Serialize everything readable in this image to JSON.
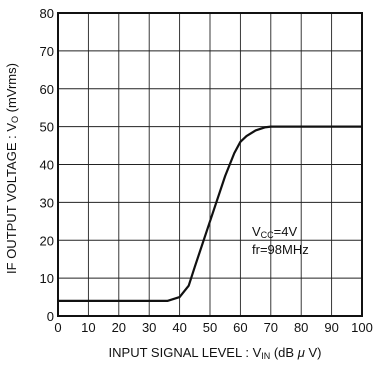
{
  "chart_data": {
    "type": "line",
    "title": "",
    "xlabel": {
      "main": "INPUT SIGNAL LEVEL : V",
      "sub": "IN",
      "unit_pre": " (dB ",
      "mu": "μ",
      "unit_post": " V)"
    },
    "ylabel": {
      "main": "IF OUTPUT VOLTAGE : V",
      "sub": "O",
      "unit": " (mVrms)"
    },
    "xlim": [
      0,
      100
    ],
    "ylim": [
      0,
      80
    ],
    "xticks": [
      "0",
      "10",
      "20",
      "30",
      "40",
      "50",
      "60",
      "70",
      "80",
      "90",
      "100"
    ],
    "yticks": [
      "0",
      "10",
      "20",
      "30",
      "40",
      "50",
      "60",
      "70",
      "80"
    ],
    "grid": true,
    "series": [
      {
        "x": [
          0,
          36,
          40,
          43,
          45,
          50,
          55,
          58,
          60,
          62,
          65,
          68,
          70,
          73,
          100
        ],
        "y": [
          4,
          4,
          5,
          8,
          13,
          25,
          37,
          43,
          46,
          47.5,
          49,
          49.8,
          50,
          50,
          50
        ]
      }
    ],
    "annotations": [
      {
        "main": "V",
        "sub": "CC",
        "rest": "=4V"
      },
      {
        "main": "fr=98MHz",
        "sub": "",
        "rest": ""
      }
    ]
  }
}
